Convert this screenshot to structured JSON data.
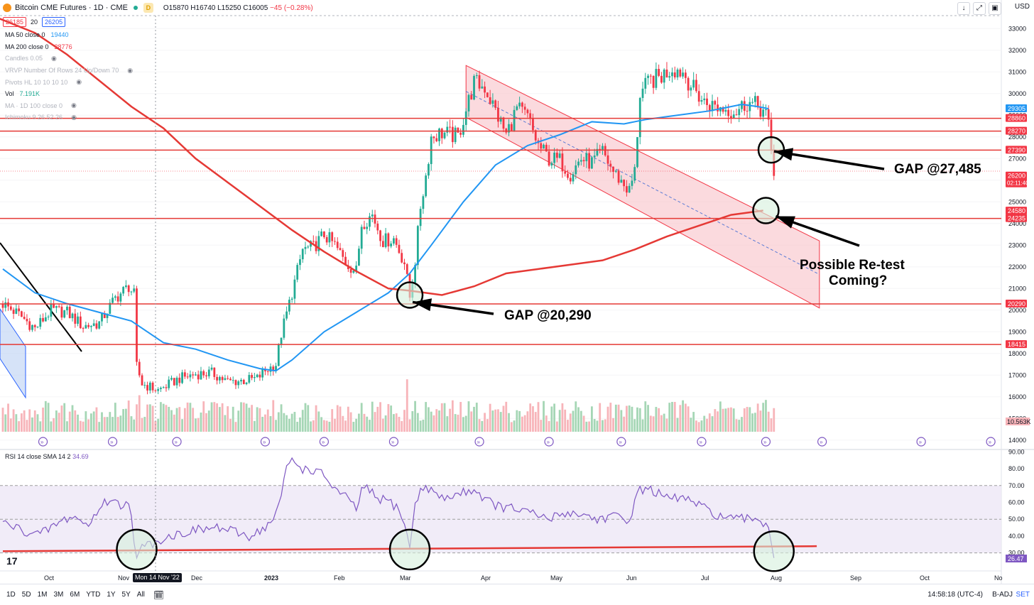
{
  "header": {
    "symbol": "Bitcoin CME Futures · 1D · CME",
    "badge": "D",
    "ohlc": {
      "o": "O15870",
      "h": "H16740",
      "l": "L15250",
      "c": "C16005",
      "chg": "−45 (−0.28%)"
    }
  },
  "toolbar": {
    "down_icon": "↓",
    "expand_icon": "⤢",
    "settings_icon": "▣",
    "currency": "USD"
  },
  "price_boxes": {
    "bid": "26185",
    "spread": "20",
    "ask": "26205"
  },
  "legend": [
    {
      "label": "MA 50 close 0",
      "value": "19440",
      "color": "#2196f3",
      "dim": false
    },
    {
      "label": "MA 200 close 0",
      "value": "28776",
      "color": "#f23645",
      "dim": false
    },
    {
      "label": "Candles 0.05",
      "value": "",
      "color": "#b2b5be",
      "dim": true
    },
    {
      "label": "VRVP Number Of Rows 24 Up/Down 70",
      "value": "",
      "color": "#b2b5be",
      "dim": true
    },
    {
      "label": "Pivots HL 10 10 10 10",
      "value": "",
      "color": "#b2b5be",
      "dim": true
    },
    {
      "label": "Vol",
      "value": "7.191K",
      "color": "#22ab94",
      "dim": false
    },
    {
      "label": "MA · 1D 100 close 0",
      "value": "",
      "color": "#b2b5be",
      "dim": true
    },
    {
      "label": "Ichimoku 9 26 52 26",
      "value": "",
      "color": "#b2b5be",
      "dim": true
    }
  ],
  "rsi_legend": {
    "label": "RSI 14 close SMA 14 2",
    "value": "34.69"
  },
  "bottom": {
    "timeframes": [
      "1D",
      "5D",
      "1M",
      "3M",
      "6M",
      "YTD",
      "1Y",
      "5Y",
      "All"
    ],
    "calendar_icon": "🗓",
    "clock": "14:58:18 (UTC-4)",
    "adj": "B-ADJ",
    "set": "SET"
  },
  "date_chip": "Mon 14 Nov '22",
  "tv_logo": "17",
  "colors": {
    "up": "#22ab94",
    "down": "#f23645",
    "ma50": "#2196f3",
    "ma200": "#e53935",
    "rsi": "#7e57c2",
    "channel": "#f8bbc3"
  },
  "chart_data": [
    {
      "type": "candlestick",
      "title": "Bitcoin CME Futures · 1D · CME",
      "ylim": [
        13600,
        33600
      ],
      "y_ticks": [
        "33000",
        "32000",
        "31000",
        "30000",
        "29000",
        "28000",
        "27000",
        "26000",
        "25000",
        "24000",
        "23000",
        "22000",
        "21000",
        "20000",
        "19000",
        "18000",
        "17000",
        "16000",
        "15000",
        "14000"
      ],
      "x_ticks": [
        "Oct",
        "Nov",
        "Dec",
        "2023",
        "Feb",
        "Mar",
        "Apr",
        "May",
        "Jun",
        "Jul",
        "Aug",
        "Sep",
        "Oct",
        "No"
      ],
      "anchors": [
        {
          "t": 0,
          "p": 20300
        },
        {
          "t": 6,
          "p": 19800
        },
        {
          "t": 12,
          "p": 19150
        },
        {
          "t": 18,
          "p": 20000
        },
        {
          "t": 24,
          "p": 19900
        },
        {
          "t": 30,
          "p": 19250
        },
        {
          "t": 36,
          "p": 19400
        },
        {
          "t": 42,
          "p": 20550
        },
        {
          "t": 47,
          "p": 21100
        },
        {
          "t": 49,
          "p": 20700
        },
        {
          "t": 50,
          "p": 17400
        },
        {
          "t": 52,
          "p": 16600
        },
        {
          "t": 58,
          "p": 16300
        },
        {
          "t": 66,
          "p": 16850
        },
        {
          "t": 72,
          "p": 17050
        },
        {
          "t": 78,
          "p": 17100
        },
        {
          "t": 84,
          "p": 16700
        },
        {
          "t": 90,
          "p": 16750
        },
        {
          "t": 95,
          "p": 16850
        },
        {
          "t": 98,
          "p": 17200
        },
        {
          "t": 102,
          "p": 17500
        },
        {
          "t": 104,
          "p": 18900
        },
        {
          "t": 108,
          "p": 20800
        },
        {
          "t": 112,
          "p": 22800
        },
        {
          "t": 116,
          "p": 22900
        },
        {
          "t": 120,
          "p": 23500
        },
        {
          "t": 124,
          "p": 23000
        },
        {
          "t": 128,
          "p": 22200
        },
        {
          "t": 132,
          "p": 21800
        },
        {
          "t": 134,
          "p": 24000
        },
        {
          "t": 138,
          "p": 24400
        },
        {
          "t": 142,
          "p": 23200
        },
        {
          "t": 146,
          "p": 23300
        },
        {
          "t": 150,
          "p": 22200
        },
        {
          "t": 152,
          "p": 20600
        },
        {
          "t": 154,
          "p": 22300
        },
        {
          "t": 156,
          "p": 24800
        },
        {
          "t": 158,
          "p": 26200
        },
        {
          "t": 160,
          "p": 28000
        },
        {
          "t": 164,
          "p": 28200
        },
        {
          "t": 170,
          "p": 28000
        },
        {
          "t": 176,
          "p": 30500
        },
        {
          "t": 180,
          "p": 30300
        },
        {
          "t": 184,
          "p": 29200
        },
        {
          "t": 188,
          "p": 28100
        },
        {
          "t": 192,
          "p": 29300
        },
        {
          "t": 196,
          "p": 28900
        },
        {
          "t": 200,
          "p": 27600
        },
        {
          "t": 204,
          "p": 27000
        },
        {
          "t": 208,
          "p": 26900
        },
        {
          "t": 212,
          "p": 26300
        },
        {
          "t": 216,
          "p": 27000
        },
        {
          "t": 220,
          "p": 26800
        },
        {
          "t": 224,
          "p": 27300
        },
        {
          "t": 228,
          "p": 26400
        },
        {
          "t": 232,
          "p": 25800
        },
        {
          "t": 234,
          "p": 25500
        },
        {
          "t": 236,
          "p": 26400
        },
        {
          "t": 238,
          "p": 30000
        },
        {
          "t": 242,
          "p": 30600
        },
        {
          "t": 246,
          "p": 30800
        },
        {
          "t": 250,
          "p": 31200
        },
        {
          "t": 254,
          "p": 31000
        },
        {
          "t": 258,
          "p": 30200
        },
        {
          "t": 262,
          "p": 29600
        },
        {
          "t": 266,
          "p": 29400
        },
        {
          "t": 270,
          "p": 29300
        },
        {
          "t": 274,
          "p": 29200
        },
        {
          "t": 278,
          "p": 29600
        },
        {
          "t": 282,
          "p": 29400
        },
        {
          "t": 284,
          "p": 29200
        },
        {
          "t": 286,
          "p": 28800
        },
        {
          "t": 287,
          "p": 27400
        },
        {
          "t": 288,
          "p": 26200
        }
      ],
      "ma50": [
        [
          0,
          21900
        ],
        [
          12,
          20800
        ],
        [
          24,
          20300
        ],
        [
          36,
          19900
        ],
        [
          48,
          19500
        ],
        [
          60,
          18500
        ],
        [
          72,
          18200
        ],
        [
          84,
          17700
        ],
        [
          96,
          17300
        ],
        [
          102,
          17200
        ],
        [
          108,
          17700
        ],
        [
          120,
          19000
        ],
        [
          132,
          19900
        ],
        [
          144,
          20800
        ],
        [
          152,
          21700
        ],
        [
          160,
          23000
        ],
        [
          172,
          25000
        ],
        [
          184,
          26700
        ],
        [
          196,
          27600
        ],
        [
          208,
          28100
        ],
        [
          220,
          28700
        ],
        [
          232,
          28600
        ],
        [
          240,
          28800
        ],
        [
          252,
          29000
        ],
        [
          264,
          29200
        ],
        [
          276,
          29500
        ],
        [
          282,
          29400
        ],
        [
          286,
          29300
        ]
      ],
      "ma200": [
        [
          -2,
          33500
        ],
        [
          12,
          32800
        ],
        [
          24,
          31800
        ],
        [
          36,
          30600
        ],
        [
          48,
          29400
        ],
        [
          60,
          28400
        ],
        [
          72,
          27000
        ],
        [
          84,
          25900
        ],
        [
          96,
          24800
        ],
        [
          108,
          23700
        ],
        [
          120,
          22700
        ],
        [
          132,
          21800
        ],
        [
          144,
          21000
        ],
        [
          152,
          20900
        ],
        [
          164,
          20700
        ],
        [
          176,
          21100
        ],
        [
          188,
          21700
        ],
        [
          200,
          21900
        ],
        [
          212,
          22100
        ],
        [
          224,
          22300
        ],
        [
          236,
          22800
        ],
        [
          248,
          23400
        ],
        [
          260,
          23900
        ],
        [
          272,
          24400
        ],
        [
          284,
          24600
        ]
      ],
      "horizontal_levels": [
        {
          "value": 28860,
          "label": "28860"
        },
        {
          "value": 28270,
          "label": "28270"
        },
        {
          "value": 27390,
          "label": "27390"
        },
        {
          "value": 24235,
          "label": "24235"
        },
        {
          "value": 20290,
          "label": "20290"
        },
        {
          "value": 18415,
          "label": "18415"
        }
      ],
      "axis_tags": [
        {
          "value": 29305,
          "label": "29305",
          "color": "#2196f3"
        },
        {
          "value": 28860,
          "label": "28860",
          "color": "#f23645"
        },
        {
          "value": 28270,
          "label": "28270",
          "color": "#f23645"
        },
        {
          "value": 27390,
          "label": "27390",
          "color": "#f23645"
        },
        {
          "value": 26200,
          "label": "26200",
          "sublabel": "02:11:40",
          "color": "#f23645"
        },
        {
          "value": 24580,
          "label": "24580",
          "color": "#f23645"
        },
        {
          "value": 24235,
          "label": "24235",
          "color": "#f23645"
        },
        {
          "value": 20290,
          "label": "20290",
          "color": "#f23645"
        },
        {
          "value": 18415,
          "label": "18415",
          "color": "#f23645"
        }
      ],
      "volume_tag": "10.563K",
      "channel": {
        "upper_start": [
          173,
          31300
        ],
        "upper_end": [
          305,
          23200
        ],
        "lower_start": [
          173,
          28900
        ],
        "lower_end": [
          305,
          20100
        ]
      },
      "annotations": [
        {
          "text": "GAP @27,485",
          "target": [
            287,
            27400
          ]
        },
        {
          "text": "GAP @20,290",
          "target": [
            152,
            20700
          ]
        },
        {
          "text": "Possible Re-test",
          "target": [
            285,
            24600
          ]
        },
        {
          "text": "Coming?",
          "target": [
            285,
            24600
          ]
        }
      ]
    },
    {
      "type": "line",
      "title": "RSI 14 close SMA 14 2",
      "ylim": [
        21,
        91
      ],
      "y_ticks": [
        "90.00",
        "80.00",
        "70.00",
        "60.00",
        "50.00",
        "40.00",
        "30.00"
      ],
      "bands": {
        "upper": 70,
        "middle": 50,
        "lower": 30
      },
      "last_value": "26.47",
      "values": [
        [
          0,
          48
        ],
        [
          8,
          43
        ],
        [
          14,
          41
        ],
        [
          20,
          47
        ],
        [
          26,
          52
        ],
        [
          32,
          46
        ],
        [
          36,
          57
        ],
        [
          40,
          62
        ],
        [
          44,
          58
        ],
        [
          47,
          62
        ],
        [
          50,
          27
        ],
        [
          52,
          33
        ],
        [
          60,
          39
        ],
        [
          70,
          43
        ],
        [
          80,
          45
        ],
        [
          92,
          40
        ],
        [
          100,
          47
        ],
        [
          104,
          62
        ],
        [
          106,
          82
        ],
        [
          108,
          85
        ],
        [
          112,
          80
        ],
        [
          116,
          79
        ],
        [
          120,
          76
        ],
        [
          124,
          68
        ],
        [
          128,
          63
        ],
        [
          132,
          56
        ],
        [
          134,
          67
        ],
        [
          136,
          68
        ],
        [
          140,
          62
        ],
        [
          144,
          61
        ],
        [
          148,
          56
        ],
        [
          150,
          47
        ],
        [
          152,
          33
        ],
        [
          154,
          60
        ],
        [
          156,
          66
        ],
        [
          158,
          70
        ],
        [
          164,
          62
        ],
        [
          170,
          65
        ],
        [
          176,
          68
        ],
        [
          180,
          62
        ],
        [
          186,
          57
        ],
        [
          192,
          56
        ],
        [
          198,
          53
        ],
        [
          204,
          50
        ],
        [
          210,
          54
        ],
        [
          216,
          53
        ],
        [
          222,
          50
        ],
        [
          228,
          52
        ],
        [
          232,
          49
        ],
        [
          235,
          53
        ],
        [
          237,
          66
        ],
        [
          240,
          69
        ],
        [
          244,
          66
        ],
        [
          248,
          62
        ],
        [
          254,
          63
        ],
        [
          260,
          58
        ],
        [
          266,
          53
        ],
        [
          272,
          50
        ],
        [
          278,
          50
        ],
        [
          282,
          51
        ],
        [
          286,
          45
        ],
        [
          288,
          27
        ]
      ],
      "trendline": [
        [
          0,
          31
        ],
        [
          304,
          34
        ]
      ]
    }
  ]
}
